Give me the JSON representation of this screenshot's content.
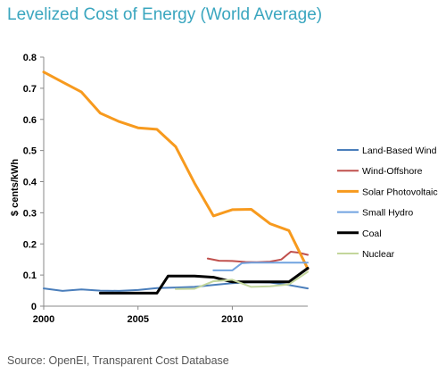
{
  "title": "Levelized Cost of Energy (World Average)",
  "source": "Source: OpenEI, Transparent Cost Database",
  "chart_data": {
    "type": "line",
    "ylabel": "$ cents/kWh",
    "xlabel": "",
    "xlim": [
      2000,
      2014
    ],
    "ylim": [
      0,
      0.8
    ],
    "x_ticks": [
      2000,
      2005,
      2010
    ],
    "y_ticks": [
      0,
      0.1,
      0.2,
      0.3,
      0.4,
      0.5,
      0.6,
      0.7,
      0.8
    ],
    "y_tick_labels": [
      "0",
      "0.1",
      "0.2",
      "0.3",
      "0.4",
      "0.5",
      "0.6",
      "0.7",
      "0.8"
    ],
    "grid": false,
    "legend_position": "right",
    "series": [
      {
        "name": "Land-Based Wind",
        "color": "#4a7ebb",
        "width": 2,
        "points": [
          [
            2000,
            0.057
          ],
          [
            2001,
            0.049
          ],
          [
            2002,
            0.054
          ],
          [
            2003,
            0.05
          ],
          [
            2004,
            0.049
          ],
          [
            2005,
            0.052
          ],
          [
            2006,
            0.058
          ],
          [
            2007,
            0.06
          ],
          [
            2008,
            0.062
          ],
          [
            2009,
            0.068
          ],
          [
            2010,
            0.074
          ],
          [
            2011,
            0.077
          ],
          [
            2012,
            0.076
          ],
          [
            2013,
            0.068
          ],
          [
            2014,
            0.057
          ]
        ]
      },
      {
        "name": "Wind-Offshore",
        "color": "#c0504d",
        "width": 2,
        "points": [
          [
            2008.7,
            0.153
          ],
          [
            2009.3,
            0.146
          ],
          [
            2010,
            0.145
          ],
          [
            2010.7,
            0.142
          ],
          [
            2011.3,
            0.141
          ],
          [
            2012,
            0.143
          ],
          [
            2012.6,
            0.15
          ],
          [
            2013.1,
            0.175
          ],
          [
            2013.5,
            0.172
          ],
          [
            2014,
            0.165
          ]
        ]
      },
      {
        "name": "Solar Photovoltaic",
        "color": "#f79a1e",
        "width": 3,
        "points": [
          [
            2000,
            0.752
          ],
          [
            2001,
            0.72
          ],
          [
            2002,
            0.688
          ],
          [
            2003,
            0.62
          ],
          [
            2004,
            0.593
          ],
          [
            2005,
            0.573
          ],
          [
            2006,
            0.568
          ],
          [
            2007,
            0.512
          ],
          [
            2008,
            0.395
          ],
          [
            2009,
            0.29
          ],
          [
            2010,
            0.31
          ],
          [
            2011,
            0.311
          ],
          [
            2012,
            0.265
          ],
          [
            2013,
            0.243
          ],
          [
            2014,
            0.12
          ]
        ]
      },
      {
        "name": "Small Hydro",
        "color": "#71a3e0",
        "width": 2,
        "points": [
          [
            2009,
            0.115
          ],
          [
            2010,
            0.115
          ],
          [
            2010.5,
            0.138
          ],
          [
            2011,
            0.14
          ],
          [
            2012,
            0.14
          ],
          [
            2013,
            0.14
          ],
          [
            2014,
            0.14
          ]
        ]
      },
      {
        "name": "Coal",
        "color": "#000000",
        "width": 3,
        "points": [
          [
            2003,
            0.042
          ],
          [
            2004,
            0.042
          ],
          [
            2005,
            0.042
          ],
          [
            2006,
            0.042
          ],
          [
            2006.6,
            0.097
          ],
          [
            2007,
            0.097
          ],
          [
            2008,
            0.097
          ],
          [
            2009,
            0.093
          ],
          [
            2010,
            0.078
          ],
          [
            2011,
            0.078
          ],
          [
            2012,
            0.078
          ],
          [
            2013,
            0.078
          ],
          [
            2014,
            0.122
          ]
        ]
      },
      {
        "name": "Nuclear",
        "color": "#c3d69b",
        "width": 2,
        "points": [
          [
            2007,
            0.055
          ],
          [
            2008,
            0.056
          ],
          [
            2009,
            0.08
          ],
          [
            2010,
            0.085
          ],
          [
            2011,
            0.062
          ],
          [
            2012,
            0.064
          ],
          [
            2013,
            0.07
          ],
          [
            2014,
            0.11
          ]
        ]
      }
    ]
  }
}
